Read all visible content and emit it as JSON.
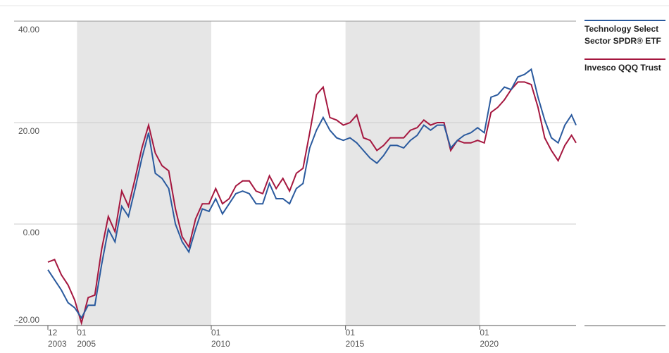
{
  "chart_data": {
    "type": "line",
    "x": [
      "2003-12",
      "2004-03",
      "2004-06",
      "2004-09",
      "2004-12",
      "2005-03",
      "2005-06",
      "2005-09",
      "2005-12",
      "2006-03",
      "2006-06",
      "2006-09",
      "2006-12",
      "2007-03",
      "2007-06",
      "2007-09",
      "2007-12",
      "2008-03",
      "2008-06",
      "2008-09",
      "2008-12",
      "2009-03",
      "2009-06",
      "2009-09",
      "2009-12",
      "2010-03",
      "2010-06",
      "2010-09",
      "2010-12",
      "2011-03",
      "2011-06",
      "2011-09",
      "2011-12",
      "2012-03",
      "2012-06",
      "2012-09",
      "2012-12",
      "2013-03",
      "2013-06",
      "2013-09",
      "2013-12",
      "2014-03",
      "2014-06",
      "2014-09",
      "2014-12",
      "2015-03",
      "2015-06",
      "2015-09",
      "2015-12",
      "2016-03",
      "2016-06",
      "2016-09",
      "2016-12",
      "2017-03",
      "2017-06",
      "2017-09",
      "2017-12",
      "2018-03",
      "2018-06",
      "2018-09",
      "2018-12",
      "2019-03",
      "2019-06",
      "2019-09",
      "2019-12",
      "2020-03",
      "2020-06",
      "2020-09",
      "2020-12",
      "2021-03",
      "2021-06",
      "2021-09",
      "2021-12",
      "2022-03",
      "2022-06",
      "2022-09",
      "2022-12",
      "2023-03",
      "2023-06",
      "2023-08"
    ],
    "series": [
      {
        "name": "Technology Select Sector SPDR® ETF",
        "color": "#2a5a9e",
        "values": [
          -9,
          -11,
          -13,
          -15.5,
          -16.5,
          -18.5,
          -16,
          -16,
          -8,
          -1,
          -3.5,
          3.5,
          1.5,
          7,
          13,
          18,
          10,
          9,
          7,
          0,
          -3.5,
          -5.5,
          -1,
          3,
          2.5,
          5,
          2,
          4,
          6,
          6.5,
          6,
          4,
          4,
          8,
          5,
          5,
          4,
          7,
          8,
          15,
          18.5,
          21,
          18.5,
          17,
          16.5,
          17,
          16,
          14.5,
          13,
          12,
          13.5,
          15.5,
          15.5,
          15,
          16.5,
          17.5,
          19.5,
          18.5,
          19.5,
          19.5,
          15,
          16.5,
          17.5,
          18,
          19,
          18,
          25,
          25.5,
          27,
          26.5,
          29,
          29.5,
          30.5,
          25,
          20.5,
          17,
          16,
          19.5,
          21.5,
          19.5
        ]
      },
      {
        "name": "Invesco QQQ Trust",
        "color": "#a5173f",
        "values": [
          -7.5,
          -7,
          -10,
          -12,
          -15,
          -19.5,
          -14.5,
          -14,
          -5,
          1.5,
          -1.5,
          6.5,
          3.5,
          9,
          15,
          19.5,
          14,
          11.5,
          10.5,
          3,
          -2.5,
          -4.5,
          1,
          4,
          4,
          7,
          4,
          5,
          7.5,
          8.5,
          8.5,
          6.5,
          6,
          9.5,
          7,
          9,
          6.5,
          10,
          11,
          18,
          25.5,
          27,
          21,
          20.5,
          19.5,
          20,
          21.5,
          17,
          16.5,
          14.5,
          15.5,
          17,
          17,
          17,
          18.5,
          19,
          20.5,
          19.5,
          20,
          20,
          14.5,
          16.5,
          16,
          16,
          16.5,
          16,
          22,
          23,
          24.5,
          26.5,
          28,
          28,
          27.5,
          23,
          17,
          14.5,
          12.5,
          15.5,
          17.5,
          16
        ]
      }
    ],
    "xlim": [
      "2003-12",
      "2023-08"
    ],
    "xticks": [
      {
        "value": "2003-12",
        "label": "12",
        "year": "2003"
      },
      {
        "value": "2005-01",
        "label": "01",
        "year": "2005"
      },
      {
        "value": "2010-01",
        "label": "01",
        "year": "2010"
      },
      {
        "value": "2015-01",
        "label": "01",
        "year": "2015"
      },
      {
        "value": "2020-01",
        "label": "01",
        "year": "2020"
      }
    ],
    "bands": [
      [
        "2005-01",
        "2010-01"
      ],
      [
        "2015-01",
        "2020-01"
      ]
    ],
    "ylim": [
      -20,
      40
    ],
    "yticks": [
      {
        "value": 40,
        "label": "40.00"
      },
      {
        "value": 20,
        "label": "20.00"
      },
      {
        "value": 0,
        "label": "0.00"
      },
      {
        "value": -20,
        "label": "-20.00"
      }
    ],
    "grid": true
  }
}
